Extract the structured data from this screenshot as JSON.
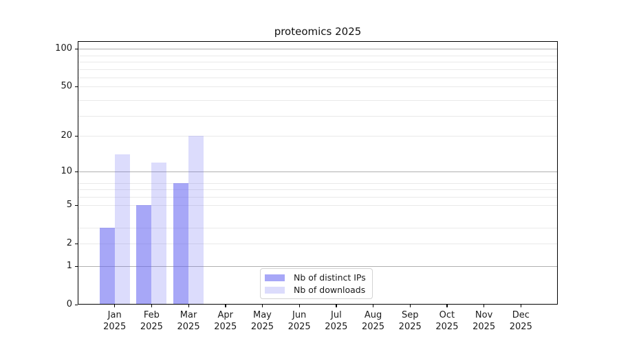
{
  "title": "proteomics 2025",
  "chart_data": {
    "type": "bar",
    "title": "proteomics 2025",
    "xlabel": "",
    "ylabel": "",
    "categories": [
      {
        "month": "Jan",
        "year": "2025"
      },
      {
        "month": "Feb",
        "year": "2025"
      },
      {
        "month": "Mar",
        "year": "2025"
      },
      {
        "month": "Apr",
        "year": "2025"
      },
      {
        "month": "May",
        "year": "2025"
      },
      {
        "month": "Jun",
        "year": "2025"
      },
      {
        "month": "Jul",
        "year": "2025"
      },
      {
        "month": "Aug",
        "year": "2025"
      },
      {
        "month": "Sep",
        "year": "2025"
      },
      {
        "month": "Oct",
        "year": "2025"
      },
      {
        "month": "Nov",
        "year": "2025"
      },
      {
        "month": "Dec",
        "year": "2025"
      }
    ],
    "series": [
      {
        "name": "Nb of distinct IPs",
        "color": "rgba(95,95,240,0.55)",
        "values": [
          3,
          5,
          8,
          null,
          null,
          null,
          null,
          null,
          null,
          null,
          null,
          null
        ]
      },
      {
        "name": "Nb of downloads",
        "color": "rgba(95,95,240,0.22)",
        "values": [
          14,
          12,
          20,
          null,
          null,
          null,
          null,
          null,
          null,
          null,
          null,
          null
        ]
      }
    ],
    "yscale": "log10(value+1)",
    "ylim": [
      0,
      115
    ],
    "yticks": [
      0,
      1,
      2,
      5,
      10,
      20,
      50,
      100
    ],
    "ygrid_major": [
      1,
      10,
      100
    ],
    "ygrid_light": [
      2,
      3,
      5,
      6,
      7,
      8,
      20,
      29,
      39,
      50,
      59,
      69,
      79,
      89
    ],
    "grid": true,
    "legend_position": "bottom-center",
    "colors": {
      "grid_major": "#b0b0b0",
      "grid_light": "#e9e9e9",
      "axis": "#000000",
      "text": "#1a1a1a"
    }
  }
}
